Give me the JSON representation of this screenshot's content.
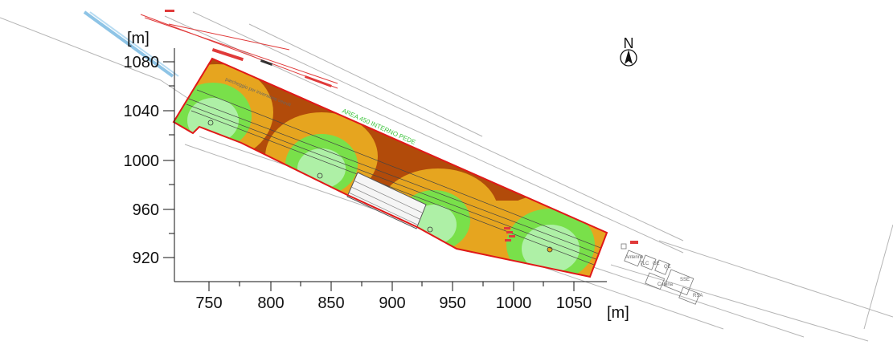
{
  "map": {
    "units": {
      "y_unit": "[m]",
      "x_unit": "[m]"
    },
    "x_axis": {
      "ticks": [
        "750",
        "800",
        "850",
        "900",
        "950",
        "1000",
        "1050"
      ]
    },
    "y_axis": {
      "ticks": [
        "1080",
        "1040",
        "1000",
        "960",
        "920"
      ]
    },
    "compass": {
      "letter": "N",
      "icon": "north-arrow-icon"
    },
    "annotations": {
      "zone_label": "AREA 450 INTERNO PEDE",
      "plan_note": "parcheggio per inversione veicoli",
      "building_labels": [
        "Antenne",
        "TLC",
        "GE",
        "QE",
        "Cabina",
        "SSE",
        "RSA"
      ]
    },
    "colors": {
      "outer_zone": "#9b1a0c",
      "zone_brown": "#b24b0a",
      "zone_orange": "#e6a51f",
      "zone_green": "#79e04a",
      "zone_light_green": "#aef0a6",
      "boundary": "#e01818",
      "rail_red": "#e03a3a",
      "rail_blue": "#8ec4e6"
    }
  }
}
